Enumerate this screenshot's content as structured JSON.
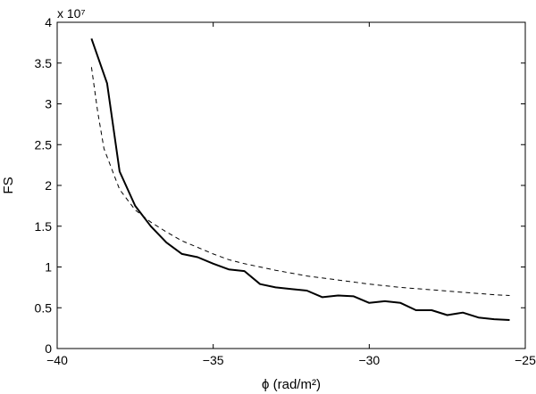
{
  "chart_data": {
    "type": "line",
    "title": "",
    "xlabel": "ϕ (rad/m²)",
    "ylabel": "FS",
    "y_exponent_label": "x 10⁷",
    "xlim": [
      -40,
      -25
    ],
    "ylim": [
      0,
      4
    ],
    "xticks": [
      -40,
      -35,
      -30,
      -25
    ],
    "xtick_labels": [
      "−40",
      "−35",
      "−30",
      "−25"
    ],
    "yticks": [
      0,
      0.5,
      1,
      1.5,
      2,
      2.5,
      3,
      3.5,
      4
    ],
    "ytick_labels": [
      "0",
      "0.5",
      "1",
      "1.5",
      "2",
      "2.5",
      "3",
      "3.5",
      "4"
    ],
    "grid": false,
    "series": [
      {
        "style": "solid",
        "color": "#000000",
        "x": [
          -38.9,
          -38.4,
          -38.0,
          -37.5,
          -37.0,
          -36.5,
          -36.0,
          -35.5,
          -35.0,
          -34.5,
          -34.0,
          -33.5,
          -33.0,
          -32.5,
          -32.0,
          -31.5,
          -31.0,
          -30.5,
          -30.0,
          -29.5,
          -29.0,
          -28.5,
          -28.0,
          -27.5,
          -27.0,
          -26.5,
          -26.0,
          -25.5
        ],
        "y": [
          3.8,
          3.25,
          2.17,
          1.75,
          1.5,
          1.3,
          1.16,
          1.12,
          1.04,
          0.97,
          0.95,
          0.79,
          0.75,
          0.73,
          0.71,
          0.63,
          0.65,
          0.64,
          0.56,
          0.58,
          0.56,
          0.47,
          0.47,
          0.41,
          0.44,
          0.38,
          0.36,
          0.35
        ]
      },
      {
        "style": "dashed",
        "color": "#000000",
        "x": [
          -38.9,
          -38.7,
          -38.5,
          -38.2,
          -38.0,
          -37.5,
          -37.0,
          -36.5,
          -36.0,
          -35.5,
          -35.0,
          -34.5,
          -34.0,
          -33.0,
          -32.0,
          -31.0,
          -30.0,
          -29.0,
          -28.0,
          -27.0,
          -26.0,
          -25.5
        ],
        "y": [
          3.45,
          2.9,
          2.45,
          2.15,
          1.95,
          1.7,
          1.55,
          1.43,
          1.32,
          1.24,
          1.16,
          1.09,
          1.04,
          0.96,
          0.89,
          0.84,
          0.79,
          0.75,
          0.72,
          0.69,
          0.66,
          0.65
        ]
      }
    ]
  }
}
